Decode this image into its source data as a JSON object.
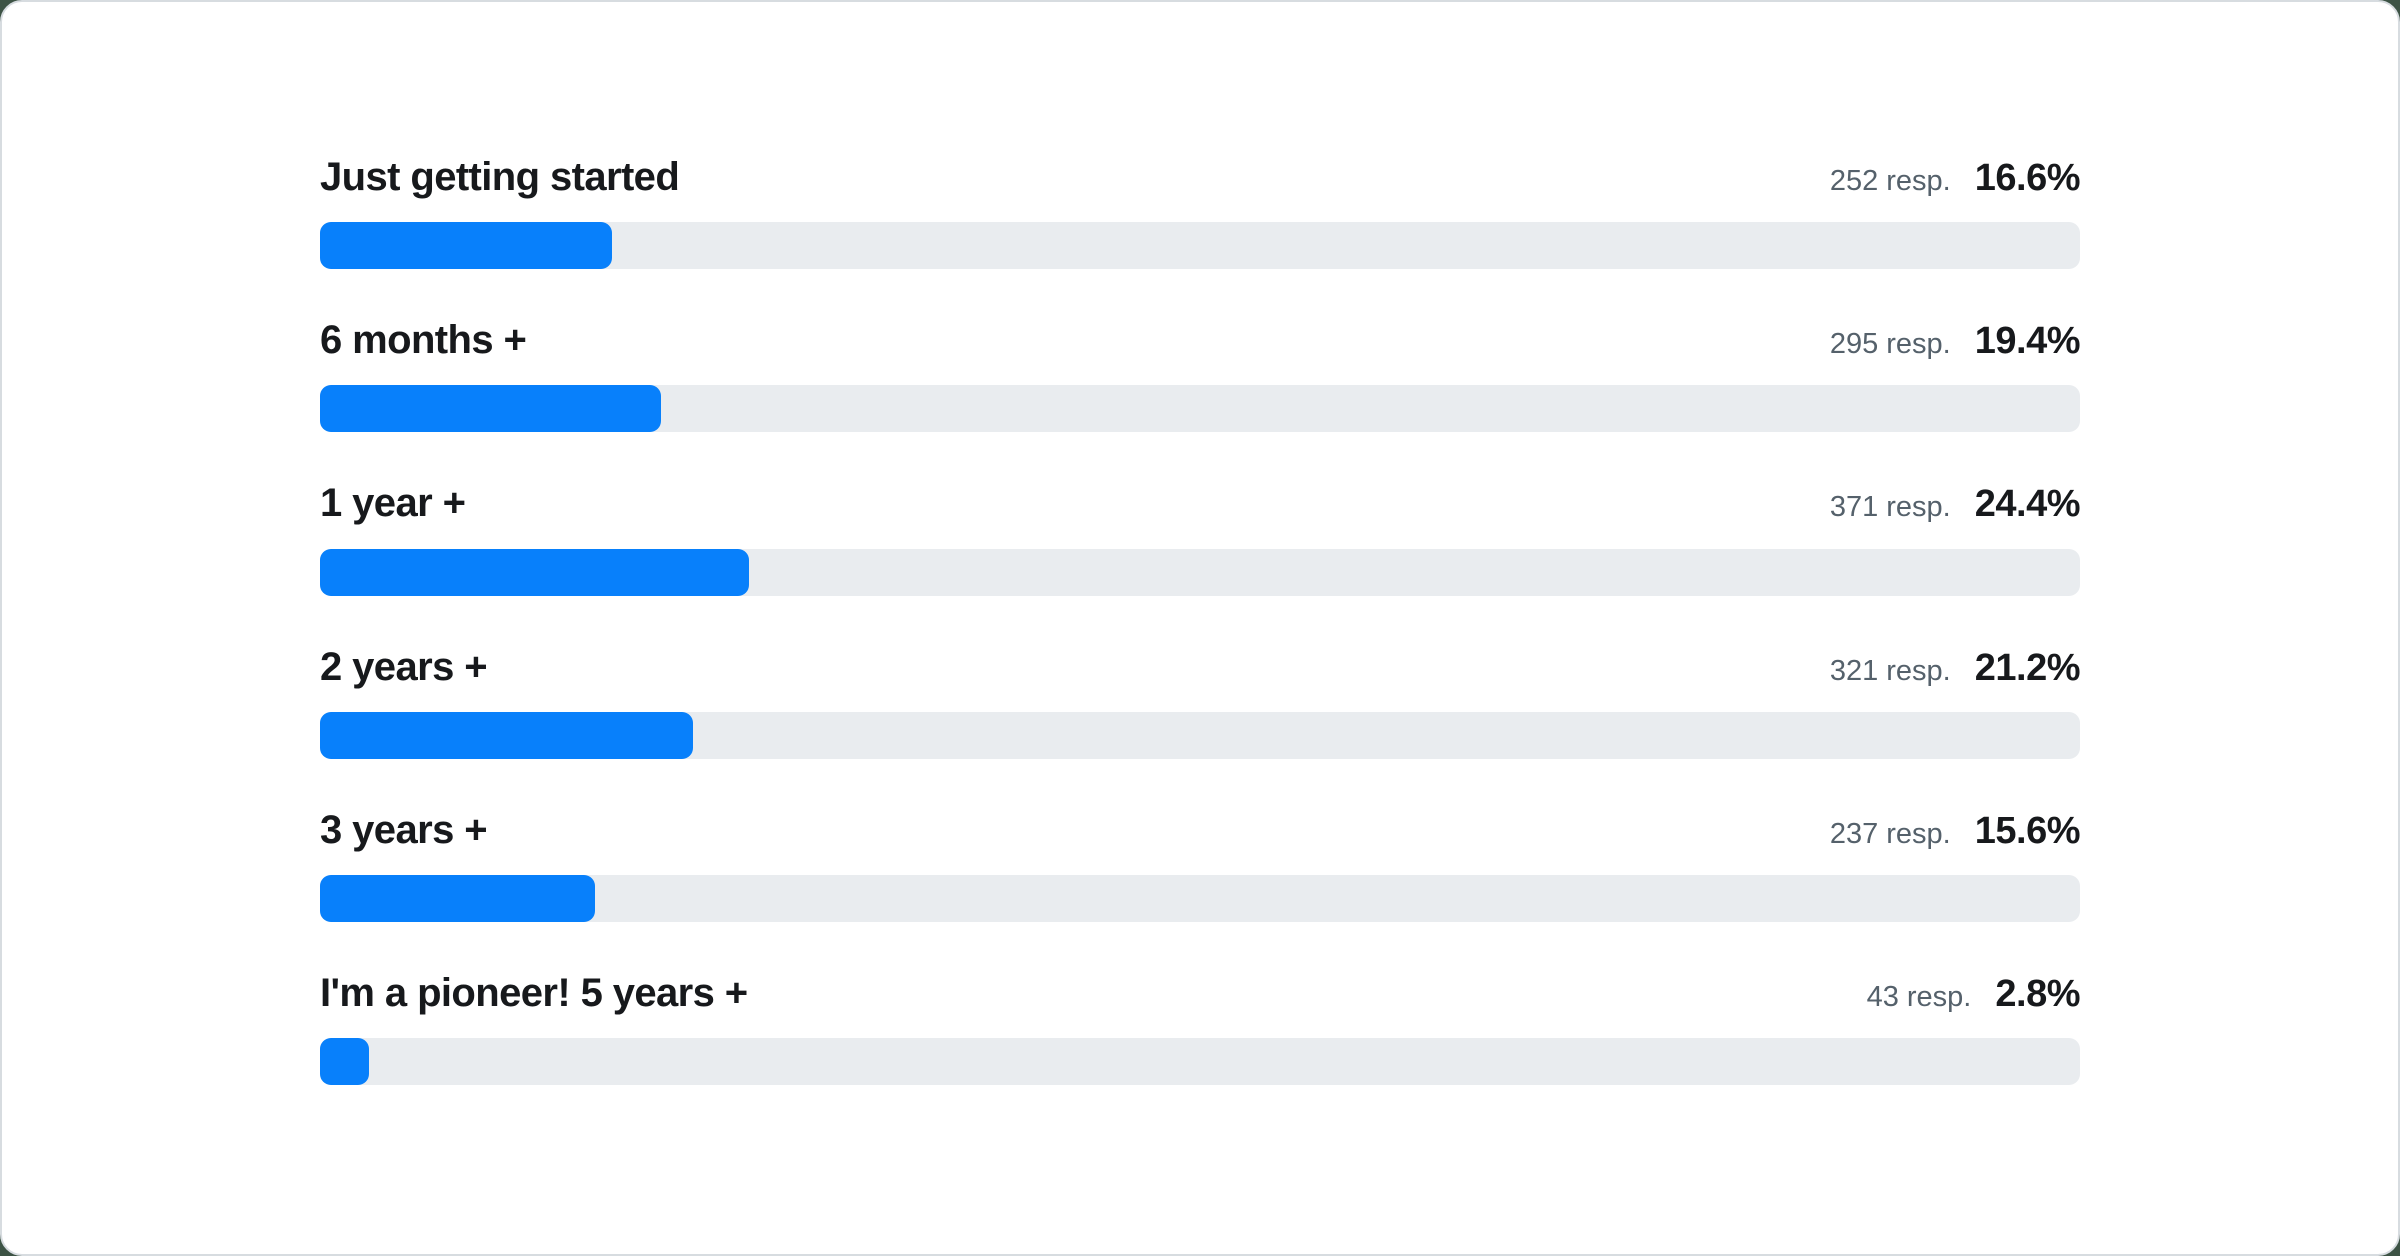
{
  "theme": {
    "page_background": "#3D5345",
    "card_background": "#FFFFFF",
    "card_border": "#D7DCE0",
    "accent_blue": "#0880FB",
    "track_gray": "#E9ECEF",
    "text_strong": "#17191C",
    "text_muted": "#55616B"
  },
  "chart_data": {
    "type": "bar",
    "orientation": "horizontal",
    "title": "",
    "xlabel": "",
    "ylabel": "",
    "value_unit": "percent",
    "xlim": [
      0,
      100
    ],
    "grid": false,
    "legend": false,
    "categories": [
      "Just getting started",
      "6 months +",
      "1 year +",
      "2 years +",
      "3 years +",
      "I'm a pioneer! 5 years +"
    ],
    "values": [
      16.6,
      19.4,
      24.4,
      21.2,
      15.6,
      2.8
    ],
    "rows": [
      {
        "label": "Just getting started",
        "responses": "252 resp.",
        "percent_label": "16.6%",
        "percent": 16.6
      },
      {
        "label": "6 months +",
        "responses": "295 resp.",
        "percent_label": "19.4%",
        "percent": 19.4
      },
      {
        "label": "1 year +",
        "responses": "371 resp.",
        "percent_label": "24.4%",
        "percent": 24.4
      },
      {
        "label": "2 years +",
        "responses": "321 resp.",
        "percent_label": "21.2%",
        "percent": 21.2
      },
      {
        "label": "3 years +",
        "responses": "237 resp.",
        "percent_label": "15.6%",
        "percent": 15.6
      },
      {
        "label": "I'm a pioneer! 5 years +",
        "responses": "43 resp.",
        "percent_label": "2.8%",
        "percent": 2.8
      }
    ]
  }
}
